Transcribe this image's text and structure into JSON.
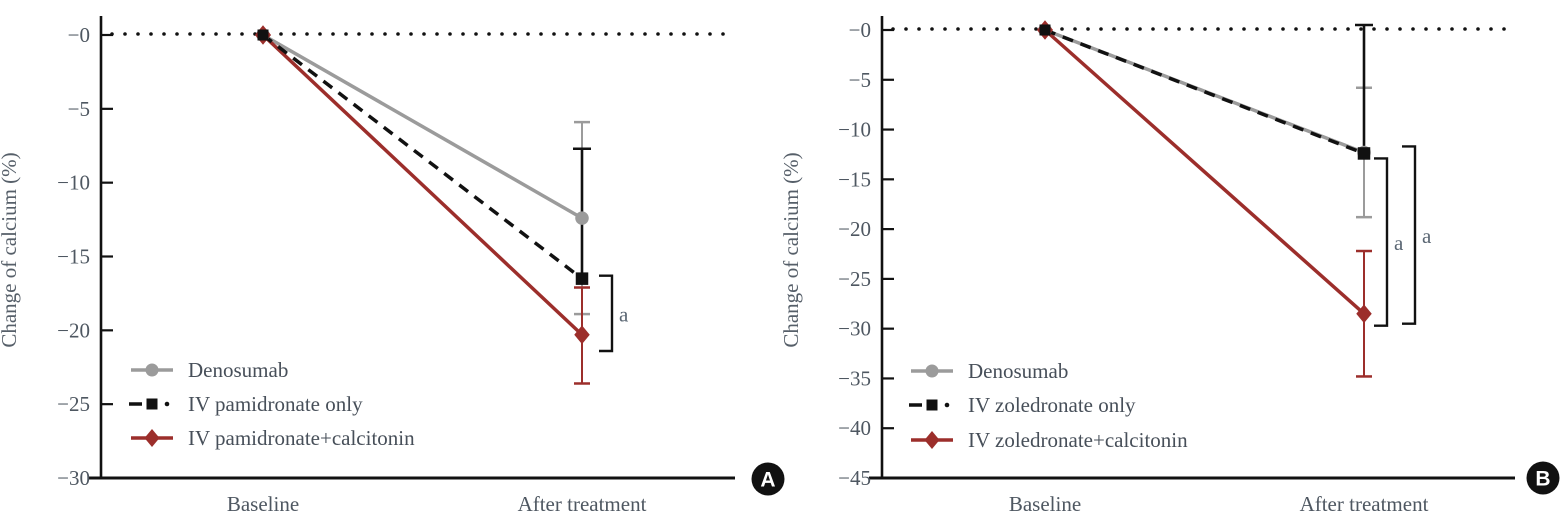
{
  "figure": {
    "background": "#ffffff",
    "axis_color": "#111111",
    "tick_label_color": "#4e5761",
    "axis_title_color": "#565f69",
    "legend_text_color": "#474f59",
    "significance_label_color": "#5a6673"
  },
  "chart_data": [
    {
      "type": "line",
      "panel_label": "A",
      "ylabel": "Change of calcium (%)",
      "categories": [
        "Baseline",
        "After treatment"
      ],
      "ylim": [
        -30,
        0
      ],
      "yticks": [
        0,
        -5,
        -10,
        -15,
        -20,
        -25,
        -30
      ],
      "ytick_labels": [
        "−0",
        "−5",
        "−10",
        "−15",
        "−20",
        "−25",
        "−30"
      ],
      "grid": false,
      "legend_position": "lower-left",
      "zero_reference_line": "dotted",
      "series": [
        {
          "name": "Denosumab",
          "color": "#9b9b9b",
          "marker": "circle",
          "line_style": "solid",
          "values": [
            0,
            -12.4
          ],
          "error_bar": {
            "upper": -5.9,
            "lower": -18.9,
            "caps": "both"
          }
        },
        {
          "name": "IV pamidronate only",
          "color": "#111111",
          "marker": "square",
          "line_style": "dashed",
          "values": [
            0,
            -16.5
          ],
          "error_bar": {
            "upper": -7.7,
            "lower": -16.5,
            "caps": "top"
          }
        },
        {
          "name": "IV pamidronate+calcitonin",
          "color": "#9c2e2b",
          "marker": "diamond",
          "line_style": "solid",
          "values": [
            0,
            -20.3
          ],
          "error_bar": {
            "upper": -17.1,
            "lower": -23.6,
            "caps": "both"
          }
        }
      ],
      "significance_brackets": [
        {
          "label": "a",
          "top_value": -16.3,
          "bottom_value": -21.4,
          "offset": 30
        }
      ]
    },
    {
      "type": "line",
      "panel_label": "B",
      "ylabel": "Change of calcium (%)",
      "categories": [
        "Baseline",
        "After treatment"
      ],
      "ylim": [
        -45,
        0
      ],
      "yticks": [
        0,
        -5,
        -10,
        -15,
        -20,
        -25,
        -30,
        -35,
        -40,
        -45
      ],
      "ytick_labels": [
        "−0",
        "−5",
        "−10",
        "−15",
        "−20",
        "−25",
        "−30",
        "−35",
        "−40",
        "−45"
      ],
      "grid": false,
      "legend_position": "lower-left",
      "zero_reference_line": "dotted",
      "series": [
        {
          "name": "Denosumab",
          "color": "#9b9b9b",
          "marker": "circle",
          "line_style": "solid",
          "values": [
            0,
            -12.3
          ],
          "error_bar": {
            "upper": -5.8,
            "lower": -18.8,
            "caps": "both"
          }
        },
        {
          "name": "IV zoledronate only",
          "color": "#111111",
          "marker": "square",
          "line_style": "dashed",
          "values": [
            0,
            -12.4
          ],
          "error_bar": {
            "upper": 0.5,
            "lower": -12.4,
            "caps": "top"
          }
        },
        {
          "name": "IV zoledronate+calcitonin",
          "color": "#9c2e2b",
          "marker": "diamond",
          "line_style": "solid",
          "values": [
            0,
            -28.5
          ],
          "error_bar": {
            "upper": -22.2,
            "lower": -34.8,
            "caps": "both"
          }
        }
      ],
      "significance_brackets": [
        {
          "label": "a",
          "top_value": -12.9,
          "bottom_value": -29.7,
          "offset": 23
        },
        {
          "label": "a",
          "top_value": -11.7,
          "bottom_value": -29.5,
          "offset": 51
        }
      ]
    }
  ]
}
